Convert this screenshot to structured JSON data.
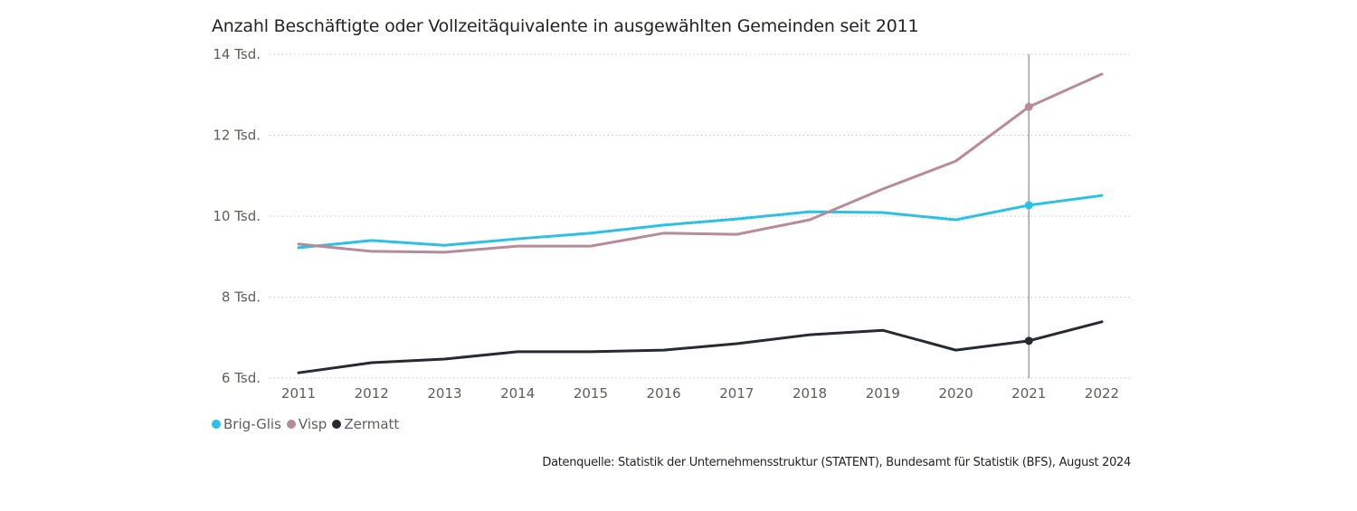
{
  "title": "Anzahl Beschäftigte oder Vollzeitäquivalente in ausgewählten Gemeinden seit 2011",
  "source": "Datenquelle: Statistik der Unternehmensstruktur (STATENT), Bundesamt für Statistik (BFS), August 2024",
  "chart_data": {
    "type": "line",
    "title": "Anzahl Beschäftigte oder Vollzeitäquivalente in ausgewählten Gemeinden seit 2011",
    "xlabel": "",
    "ylabel": "",
    "x": [
      "2011",
      "2012",
      "2013",
      "2014",
      "2015",
      "2016",
      "2017",
      "2018",
      "2019",
      "2020",
      "2021",
      "2022"
    ],
    "ylim": [
      6000,
      14000
    ],
    "yticks": [
      6000,
      8000,
      10000,
      12000,
      14000
    ],
    "ytick_labels": [
      "6 Tsd.",
      "8 Tsd.",
      "10 Tsd.",
      "12 Tsd.",
      "14 Tsd."
    ],
    "grid": true,
    "legend_position": "bottom-left",
    "highlighted_x": "2021",
    "series": [
      {
        "name": "Brig-Glis",
        "color": "#2bc1e6",
        "values": [
          9220,
          9400,
          9280,
          9440,
          9580,
          9780,
          9930,
          10110,
          10090,
          9910,
          10270,
          10510
        ]
      },
      {
        "name": "Visp",
        "color": "#b78b9a",
        "values": [
          9310,
          9130,
          9110,
          9260,
          9260,
          9580,
          9550,
          9910,
          10670,
          11360,
          12700,
          13510
        ]
      },
      {
        "name": "Zermatt",
        "color": "#252a33",
        "values": [
          6130,
          6380,
          6470,
          6650,
          6650,
          6690,
          6850,
          7070,
          7180,
          6690,
          6920,
          7390
        ]
      }
    ]
  }
}
